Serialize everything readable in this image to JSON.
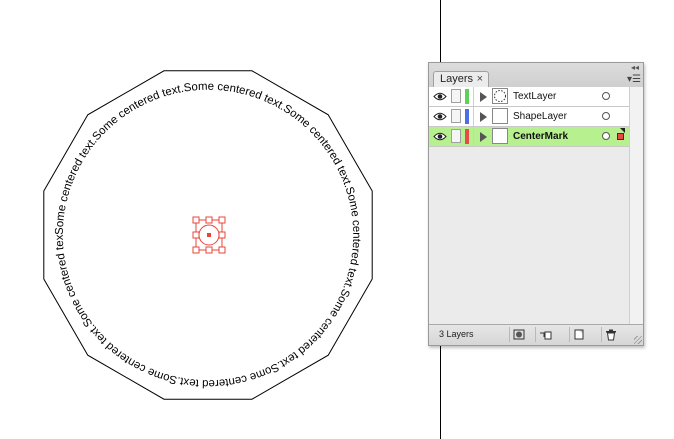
{
  "artboard": {
    "path_text": "Some centered text.Some centered text.Some centered text.Some centered text.Some centered text.Some centered text.Some centered text.Some centered text.Some centered text.Some centered text.",
    "text_color": "#000000",
    "shape_stroke": "#000000",
    "selection_color": "#e8443a"
  },
  "layers_panel": {
    "tab_label": "Layers",
    "tab_close": "×",
    "layer_count_label": "3 Layers",
    "layers": [
      {
        "name": "TextLayer",
        "color": "#5bd35b",
        "thumbnail": "dashed-circle",
        "selected": false
      },
      {
        "name": "ShapeLayer",
        "color": "#4b6fe6",
        "thumbnail": "empty",
        "selected": false
      },
      {
        "name": "CenterMark",
        "color": "#e84a4a",
        "thumbnail": "empty",
        "selected": true
      }
    ],
    "footer_buttons": [
      {
        "name": "make-clipping-mask-button",
        "icon": "clipping-mask-icon"
      },
      {
        "name": "create-sublayer-button",
        "icon": "sublayer-icon"
      },
      {
        "name": "create-new-layer-button",
        "icon": "new-layer-icon"
      },
      {
        "name": "delete-layer-button",
        "icon": "trash-icon"
      }
    ]
  }
}
